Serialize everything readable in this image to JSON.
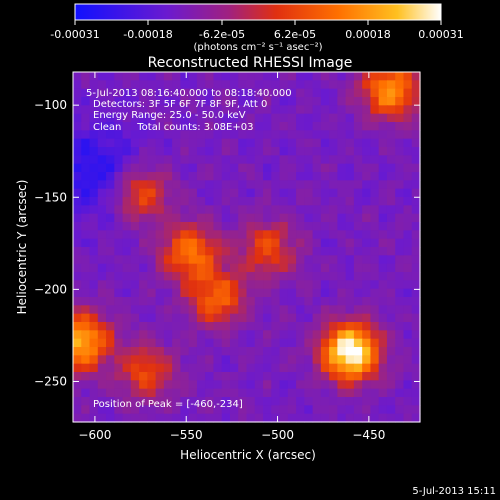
{
  "colorbar": {
    "ticks": [
      "-0.00031",
      "-0.00018",
      "-6.2e-05",
      "6.2e-05",
      "0.00018",
      "0.00031"
    ],
    "units": "(photons cm⁻² s⁻¹ asec⁻²)",
    "colors": [
      "#1010ff",
      "#6a1ad0",
      "#a02080",
      "#e03010",
      "#ff7000",
      "#ffc020",
      "#ffffff"
    ]
  },
  "title": "Reconstructed RHESSI Image",
  "info": {
    "time_range": "5-Jul-2013 08:16:40.000 to 08:18:40.000",
    "detectors": "Detectors: 3F 5F 6F 7F 8F 9F, Att 0",
    "energy": "Energy Range: 25.0 - 50.0 keV",
    "method": "Clean     Total counts: 3.08E+03"
  },
  "peak_label": "Position of Peak = [-460,-234]",
  "timestamp": "5-Jul-2013 15:11",
  "chart_data": {
    "type": "heatmap",
    "title": "Reconstructed RHESSI Image",
    "xlabel": "Heliocentric X (arcsec)",
    "ylabel": "Heliocentric Y (arcsec)",
    "xlim": [
      -612,
      -422
    ],
    "ylim": [
      -272,
      -82
    ],
    "xticks": [
      -600,
      -550,
      -500,
      -450
    ],
    "yticks": [
      -100,
      -150,
      -200,
      -250
    ],
    "colorbar_range": [
      -0.00031,
      0.00031
    ],
    "peak": [
      -460,
      -234
    ],
    "sources": [
      {
        "x": -460,
        "y": -234,
        "level": 1.0
      },
      {
        "x": -608,
        "y": -228,
        "level": 0.75
      },
      {
        "x": -438,
        "y": -92,
        "level": 0.65
      },
      {
        "x": -548,
        "y": -180,
        "level": 0.55
      },
      {
        "x": -533,
        "y": -205,
        "level": 0.5
      },
      {
        "x": -575,
        "y": -148,
        "level": 0.45
      },
      {
        "x": -505,
        "y": -178,
        "level": 0.4
      },
      {
        "x": -572,
        "y": -245,
        "level": 0.4
      }
    ]
  }
}
